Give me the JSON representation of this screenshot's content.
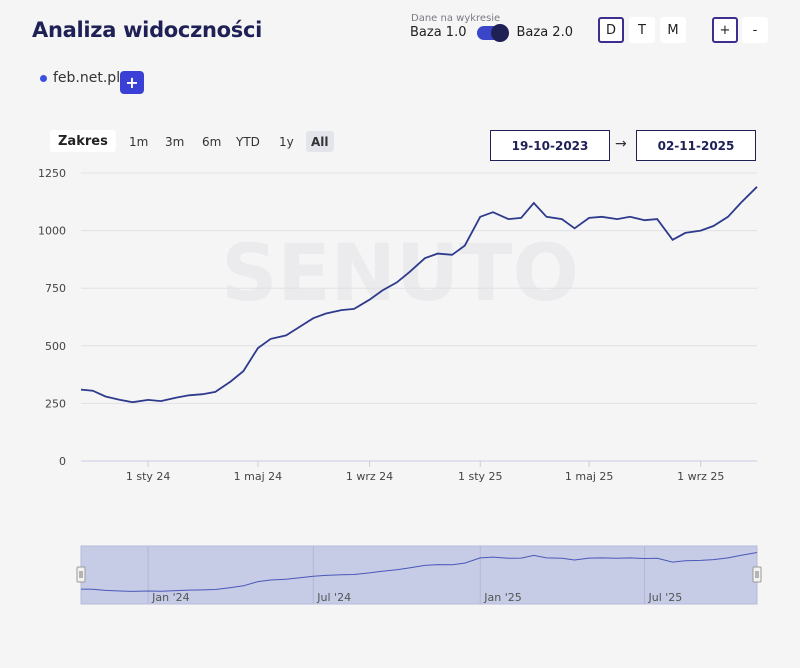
{
  "header": {
    "title": "Analiza widoczności",
    "base_caption": "Dane na wykresie",
    "base_left": "Baza 1.0",
    "base_right": "Baza 2.0",
    "granularity": [
      {
        "label": "D",
        "active": true
      },
      {
        "label": "T",
        "active": false
      },
      {
        "label": "M",
        "active": false
      }
    ],
    "zoom_in": "+",
    "zoom_out": "-"
  },
  "domain": {
    "name": "feb.net.pl",
    "add_label": "+",
    "color": "#3b4fe0"
  },
  "range": {
    "label": "Zakres",
    "buttons": [
      "1m",
      "3m",
      "6m",
      "YTD",
      "1y",
      "All"
    ],
    "active": "All",
    "from": "19-10-2023",
    "arrow": "→",
    "to": "02-11-2025"
  },
  "chart_data": {
    "type": "line",
    "title": "",
    "xlabel": "",
    "ylabel": "",
    "ylim": [
      0,
      1250
    ],
    "yticks": [
      0,
      250,
      500,
      750,
      1000,
      1250
    ],
    "xlim": [
      "2023-10-19",
      "2025-11-02"
    ],
    "xticks": [
      {
        "date": "2024-01-01",
        "label": "1 sty 24"
      },
      {
        "date": "2024-05-01",
        "label": "1 maj 24"
      },
      {
        "date": "2024-09-01",
        "label": "1 wrz 24"
      },
      {
        "date": "2025-01-01",
        "label": "1 sty 25"
      },
      {
        "date": "2025-05-01",
        "label": "1 maj 25"
      },
      {
        "date": "2025-09-01",
        "label": "1 wrz 25"
      }
    ],
    "grid": true,
    "line_color": "#2e3a8c",
    "series": [
      {
        "x": [
          "2023-10-19",
          "2023-11-01",
          "2023-11-15",
          "2023-12-01",
          "2023-12-15",
          "2024-01-01",
          "2024-01-15",
          "2024-02-01",
          "2024-02-15",
          "2024-03-01",
          "2024-03-15",
          "2024-04-01",
          "2024-04-15",
          "2024-05-01",
          "2024-05-15",
          "2024-06-01",
          "2024-06-15",
          "2024-07-01",
          "2024-07-15",
          "2024-08-01",
          "2024-08-15",
          "2024-09-01",
          "2024-09-15",
          "2024-10-01",
          "2024-10-15",
          "2024-11-01",
          "2024-11-15",
          "2024-12-01",
          "2024-12-15",
          "2025-01-01",
          "2025-01-15",
          "2025-02-01",
          "2025-02-15",
          "2025-03-01",
          "2025-03-15",
          "2025-04-01",
          "2025-04-15",
          "2025-05-01",
          "2025-05-15",
          "2025-06-01",
          "2025-06-15",
          "2025-07-01",
          "2025-07-15",
          "2025-08-01",
          "2025-08-15",
          "2025-09-01",
          "2025-09-15",
          "2025-10-01",
          "2025-10-15",
          "2025-11-02"
        ],
        "y": [
          310,
          305,
          280,
          265,
          255,
          265,
          260,
          275,
          285,
          290,
          300,
          345,
          390,
          490,
          530,
          545,
          580,
          620,
          640,
          655,
          660,
          700,
          740,
          775,
          820,
          880,
          900,
          895,
          935,
          1060,
          1080,
          1050,
          1055,
          1120,
          1060,
          1050,
          1010,
          1055,
          1060,
          1050,
          1060,
          1045,
          1050,
          960,
          990,
          1000,
          1020,
          1060,
          1120,
          1190
        ]
      }
    ],
    "navigator": {
      "ticks": [
        {
          "date": "2024-01-01",
          "label": "Jan '24"
        },
        {
          "date": "2024-07-01",
          "label": "Jul '24"
        },
        {
          "date": "2025-01-01",
          "label": "Jan '25"
        },
        {
          "date": "2025-07-01",
          "label": "Jul '25"
        }
      ]
    }
  },
  "watermark": "SENUTO"
}
